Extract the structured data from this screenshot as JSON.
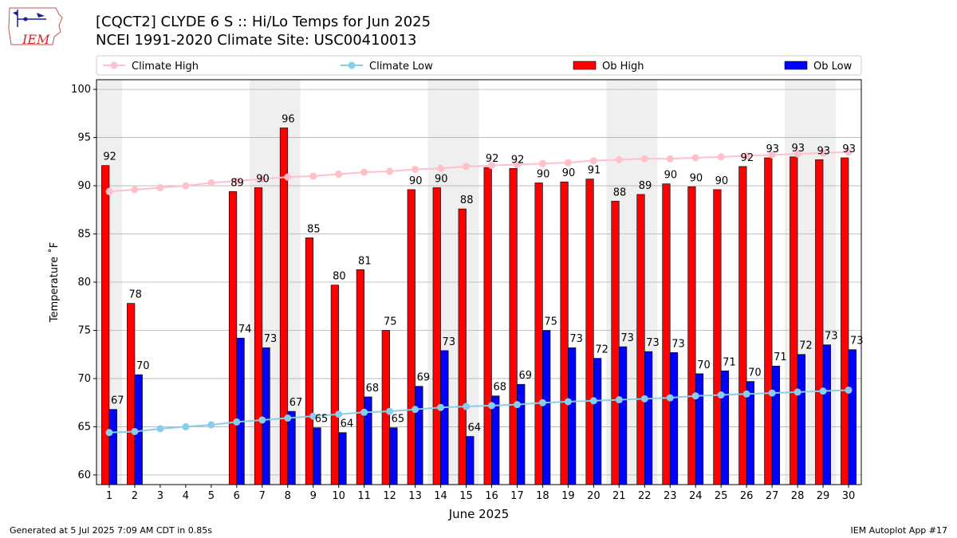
{
  "header": {
    "title_line1": "[CQCT2] CLYDE 6 S :: Hi/Lo Temps for Jun 2025",
    "title_line2": "NCEI 1991-2020 Climate Site: USC00410013",
    "logo_text": "IEM"
  },
  "footer": {
    "generated": "Generated at 5 Jul 2025 7:09 AM CDT in 0.85s",
    "app": "IEM Autoplot App #17"
  },
  "colors": {
    "ob_high": "#ff0000",
    "ob_low": "#0000ff",
    "climate_high": "#ffc0cb",
    "climate_low": "#87ceeb",
    "weekend_shade": "#efefef",
    "grid": "#b0b0b0"
  },
  "chart_data": {
    "type": "bar",
    "xlabel": "June 2025",
    "ylabel": "Temperature ˚F",
    "ylim": [
      59,
      101
    ],
    "yticks": [
      60,
      65,
      70,
      75,
      80,
      85,
      90,
      95,
      100
    ],
    "grid": "horizontal",
    "legend_placement": "top",
    "categories": [
      "1",
      "2",
      "3",
      "4",
      "5",
      "6",
      "7",
      "8",
      "9",
      "10",
      "11",
      "12",
      "13",
      "14",
      "15",
      "16",
      "17",
      "18",
      "19",
      "20",
      "21",
      "22",
      "23",
      "24",
      "25",
      "26",
      "27",
      "28",
      "29",
      "30"
    ],
    "shaded_days": [
      1,
      7,
      8,
      14,
      15,
      21,
      22,
      28,
      29
    ],
    "series": [
      {
        "name": "Climate High",
        "kind": "line",
        "values": [
          89.4,
          89.6,
          89.8,
          90.0,
          90.3,
          90.5,
          90.7,
          90.9,
          91.0,
          91.2,
          91.4,
          91.5,
          91.7,
          91.8,
          92.0,
          92.1,
          92.2,
          92.3,
          92.4,
          92.6,
          92.7,
          92.8,
          92.8,
          92.9,
          93.0,
          93.1,
          93.2,
          93.3,
          93.4,
          93.5
        ]
      },
      {
        "name": "Climate Low",
        "kind": "line",
        "values": [
          64.4,
          64.5,
          64.8,
          65.0,
          65.2,
          65.5,
          65.7,
          65.9,
          66.1,
          66.3,
          66.5,
          66.6,
          66.8,
          67.0,
          67.1,
          67.2,
          67.3,
          67.5,
          67.6,
          67.7,
          67.8,
          67.9,
          68.0,
          68.2,
          68.3,
          68.4,
          68.5,
          68.6,
          68.7,
          68.8
        ]
      },
      {
        "name": "Ob High",
        "kind": "bar",
        "values": [
          92.1,
          77.8,
          null,
          null,
          null,
          89.4,
          89.8,
          96.0,
          84.6,
          79.7,
          81.3,
          75.0,
          89.6,
          89.8,
          87.6,
          91.9,
          91.8,
          90.3,
          90.4,
          90.7,
          88.4,
          89.1,
          90.2,
          89.9,
          89.6,
          92.0,
          92.9,
          93.0,
          92.7,
          92.9
        ],
        "labels": [
          "92",
          "78",
          "",
          "",
          "",
          "89",
          "90",
          "96",
          "85",
          "80",
          "81",
          "75",
          "90",
          "90",
          "88",
          "92",
          "92",
          "90",
          "90",
          "91",
          "88",
          "89",
          "90",
          "90",
          "90",
          "92",
          "93",
          "93",
          "93",
          "93"
        ]
      },
      {
        "name": "Ob Low",
        "kind": "bar",
        "values": [
          66.8,
          70.4,
          null,
          null,
          null,
          74.2,
          73.2,
          66.6,
          64.9,
          64.4,
          68.1,
          64.9,
          69.2,
          72.9,
          64.0,
          68.2,
          69.4,
          75.0,
          73.2,
          72.1,
          73.3,
          72.8,
          72.7,
          70.5,
          70.8,
          69.7,
          71.3,
          72.5,
          73.5,
          73.0
        ],
        "labels": [
          "67",
          "70",
          "",
          "",
          "",
          "74",
          "73",
          "67",
          "65",
          "64",
          "68",
          "65",
          "69",
          "73",
          "64",
          "68",
          "69",
          "75",
          "73",
          "72",
          "73",
          "73",
          "73",
          "70",
          "71",
          "70",
          "71",
          "72",
          "73",
          "73"
        ]
      }
    ]
  }
}
